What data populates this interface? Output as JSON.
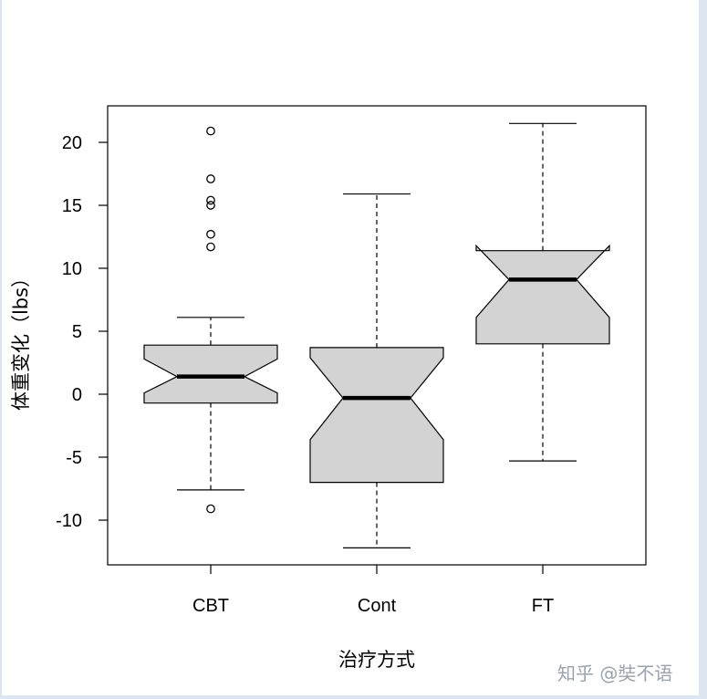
{
  "watermark": "知乎 @奘不语",
  "colors": {
    "box_fill": "#d3d3d3",
    "stroke": "#000000",
    "background": "#ffffff",
    "frame_border": "#dde7f1"
  },
  "chart_data": {
    "type": "boxplot",
    "notched": true,
    "xlabel": "治疗方式",
    "ylabel": "体重变化（lbs）",
    "ylim": [
      -13.5,
      23
    ],
    "yticks": [
      -10,
      -5,
      0,
      5,
      10,
      15,
      20
    ],
    "categories": [
      "CBT",
      "Cont",
      "FT"
    ],
    "boxes": [
      {
        "name": "CBT",
        "whisker_low": -7.6,
        "q1": -0.7,
        "median": 1.4,
        "q3": 3.9,
        "whisker_high": 6.1,
        "notch_low": 0.1,
        "notch_high": 2.8,
        "outliers": [
          20.9,
          17.1,
          15.4,
          15.0,
          12.7,
          11.7,
          -9.1
        ]
      },
      {
        "name": "Cont",
        "whisker_low": -12.2,
        "q1": -7.0,
        "median": -0.3,
        "q3": 3.7,
        "whisker_high": 15.9,
        "notch_low": -3.6,
        "notch_high": 2.9,
        "outliers": []
      },
      {
        "name": "FT",
        "whisker_low": -5.3,
        "q1": 4.0,
        "median": 9.1,
        "q3": 11.4,
        "whisker_high": 21.5,
        "notch_low": 6.1,
        "notch_high": 11.8,
        "outliers": []
      }
    ]
  }
}
